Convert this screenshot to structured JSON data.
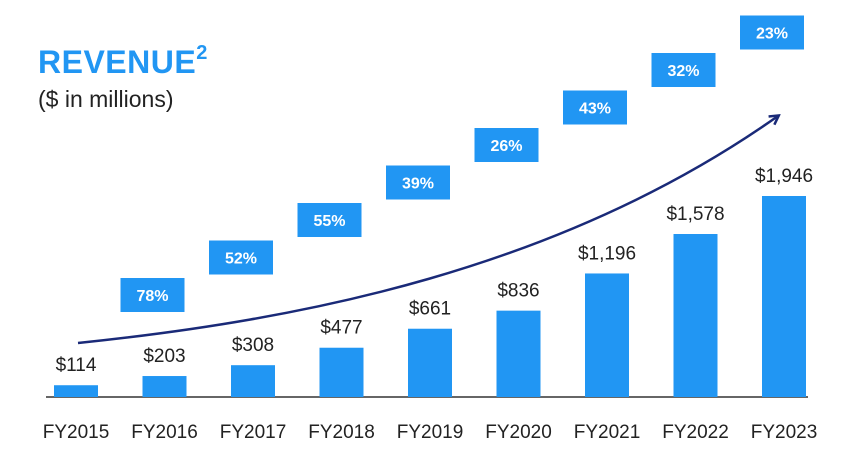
{
  "title": "REVENUE",
  "title_superscript": "2",
  "subtitle": "($ in millions)",
  "colors": {
    "accent": "#2196f3",
    "arrow": "#1a2a78",
    "text": "#222222",
    "axis": "#333333"
  },
  "chart_data": {
    "type": "bar",
    "categories": [
      "FY2015",
      "FY2016",
      "FY2017",
      "FY2018",
      "FY2019",
      "FY2020",
      "FY2021",
      "FY2022",
      "FY2023"
    ],
    "values": [
      114,
      203,
      308,
      477,
      661,
      836,
      1196,
      1578,
      1946
    ],
    "value_labels": [
      "$114",
      "$203",
      "$308",
      "$477",
      "$661",
      "$836",
      "$1,196",
      "$1,578",
      "$1,946"
    ],
    "growth_labels": [
      "78%",
      "52%",
      "55%",
      "39%",
      "26%",
      "43%",
      "32%",
      "23%"
    ],
    "title": "REVENUE",
    "subtitle": "($ in millions)",
    "ylim": [
      0,
      1946
    ],
    "grid": false,
    "trend_arrow": true
  }
}
